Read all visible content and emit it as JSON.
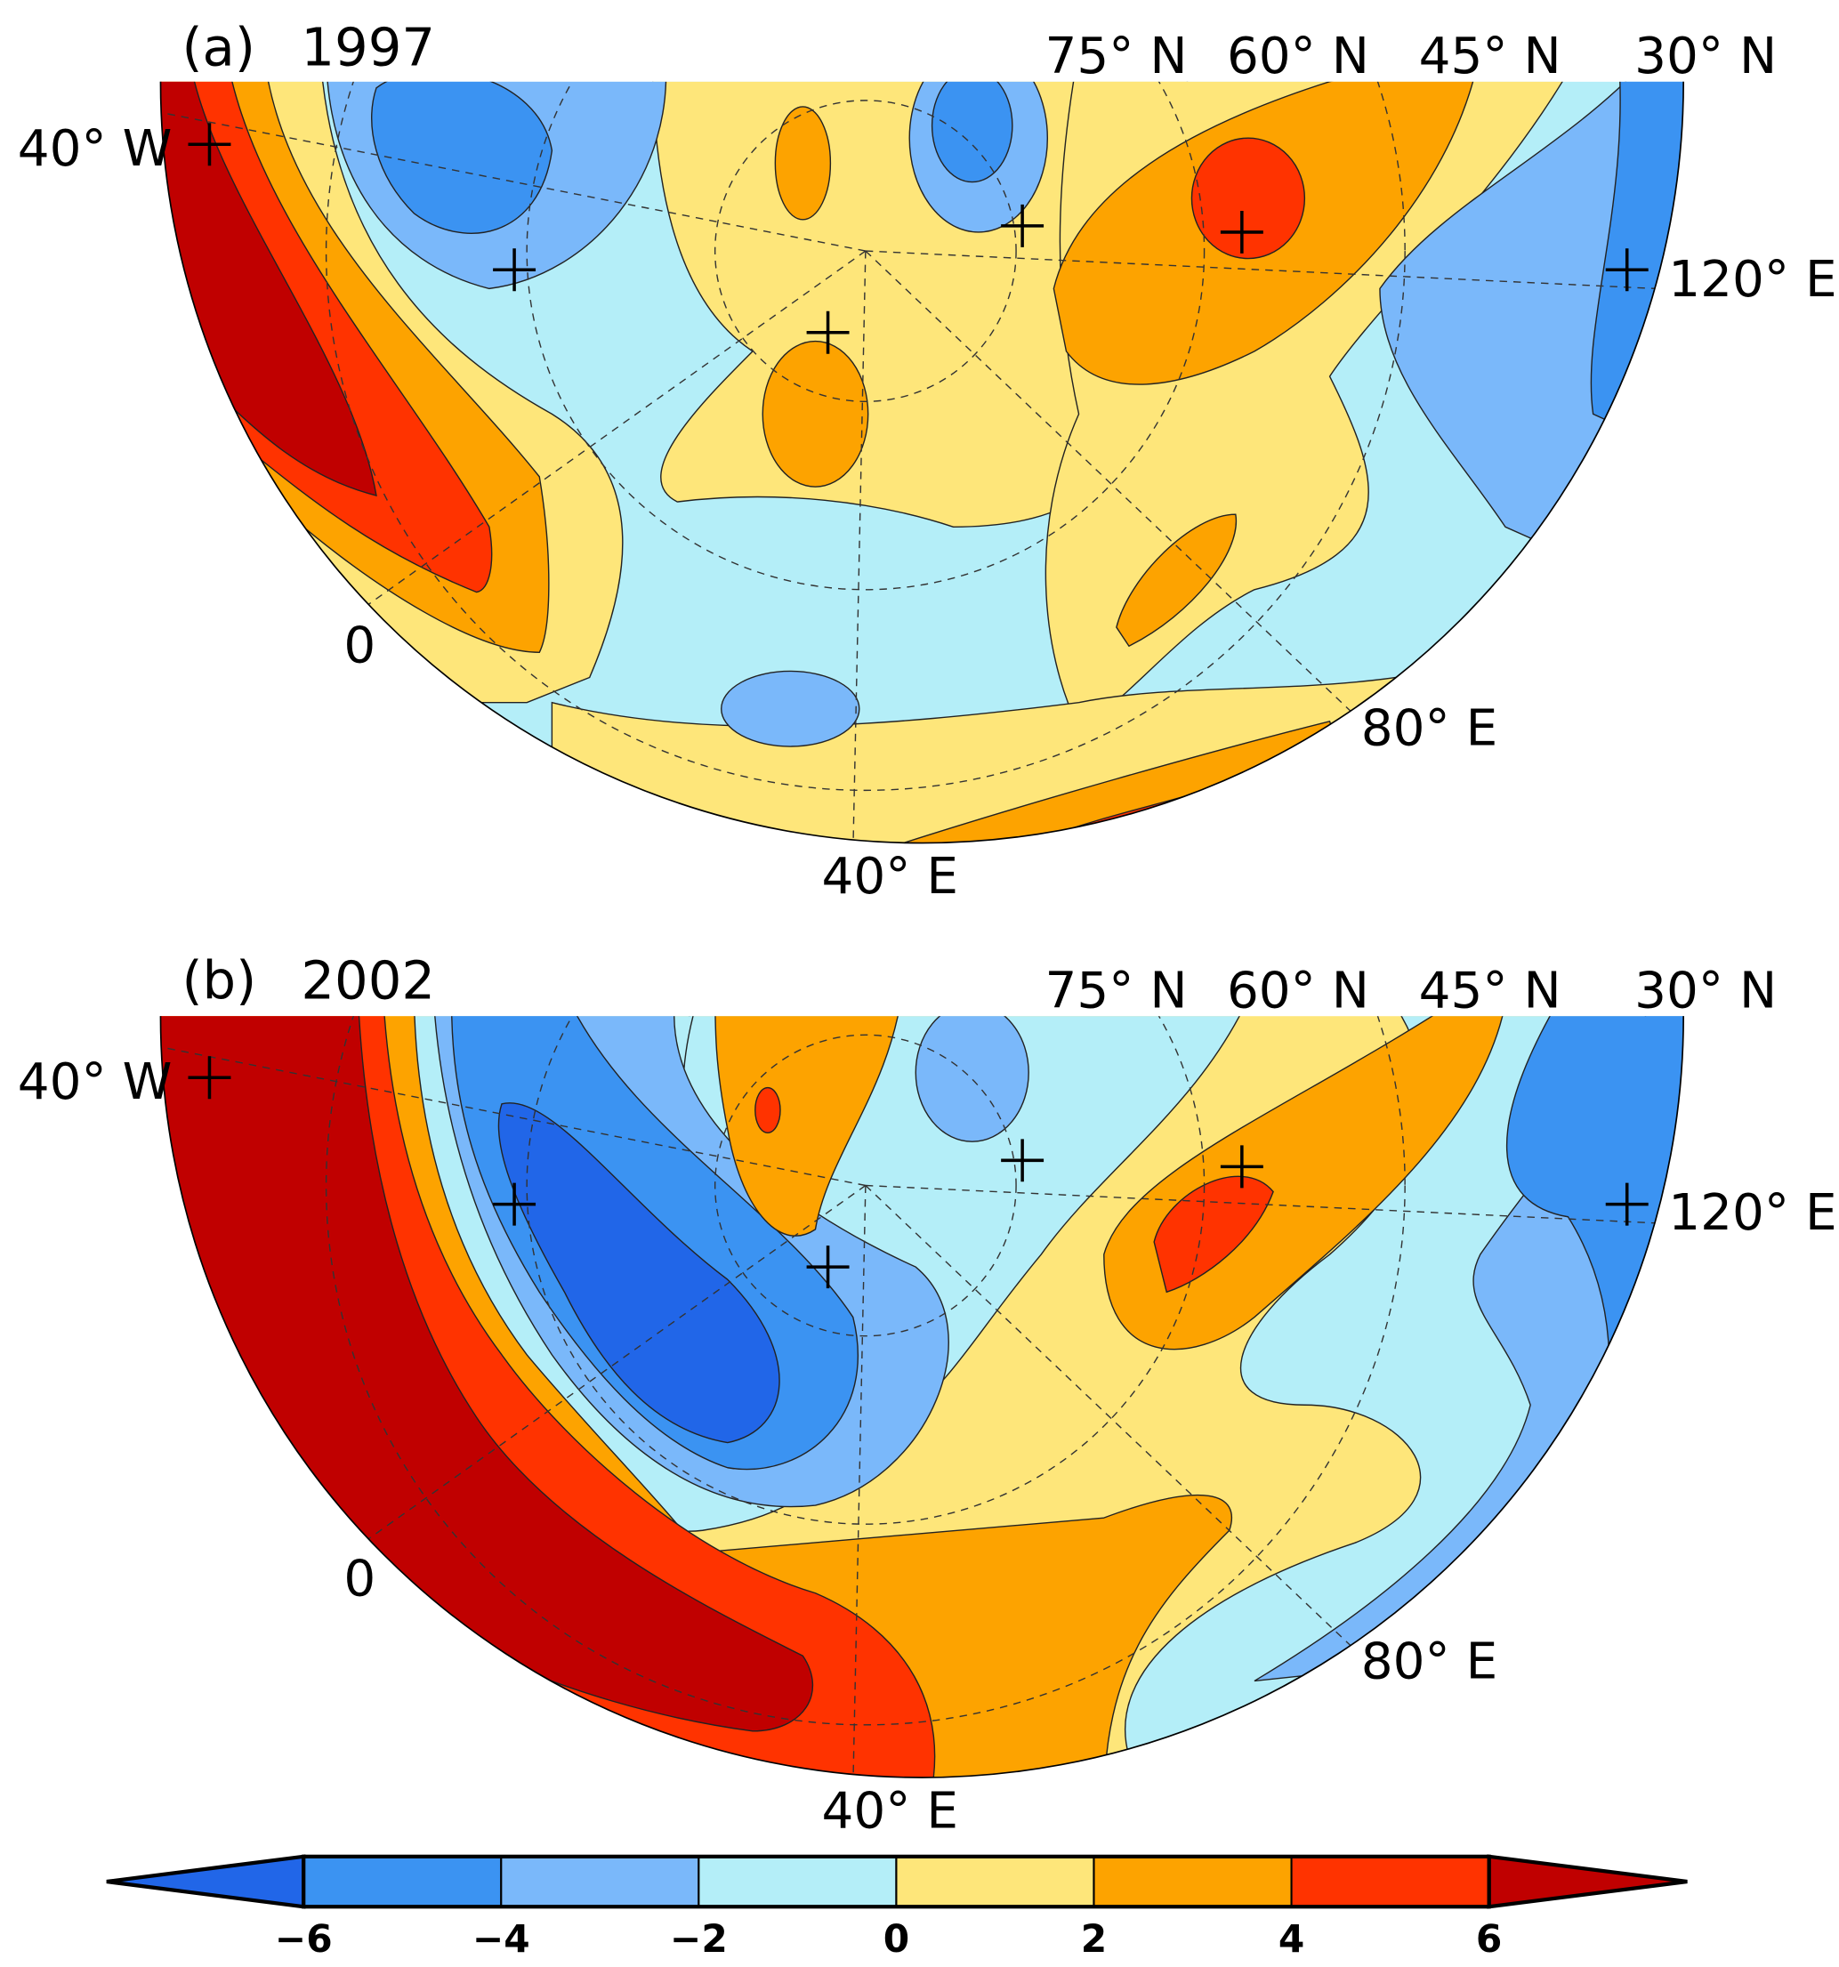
{
  "panels": [
    {
      "label": "(a)",
      "year": "1997",
      "lat_labels": [
        "75° N",
        "60° N",
        "45° N",
        "30° N"
      ],
      "lon_labels": {
        "w40": "40° W",
        "e120": "120° E",
        "zero": "0",
        "e80": "80° E",
        "e40": "40° E"
      }
    },
    {
      "label": "(b)",
      "year": "2002",
      "lat_labels": [
        "75° N",
        "60° N",
        "45° N",
        "30° N"
      ],
      "lon_labels": {
        "w40": "40° W",
        "e120": "120° E",
        "zero": "0",
        "e80": "80° E",
        "e40": "40° E"
      }
    }
  ],
  "colorbar": {
    "ticks": [
      "−6",
      "−4",
      "−2",
      "0",
      "2",
      "4",
      "6"
    ],
    "colors": [
      "#2166e8",
      "#3b93f2",
      "#7ab8fa",
      "#b4eef8",
      "#fee67a",
      "#fda300",
      "#ff3300",
      "#c00000"
    ]
  }
}
